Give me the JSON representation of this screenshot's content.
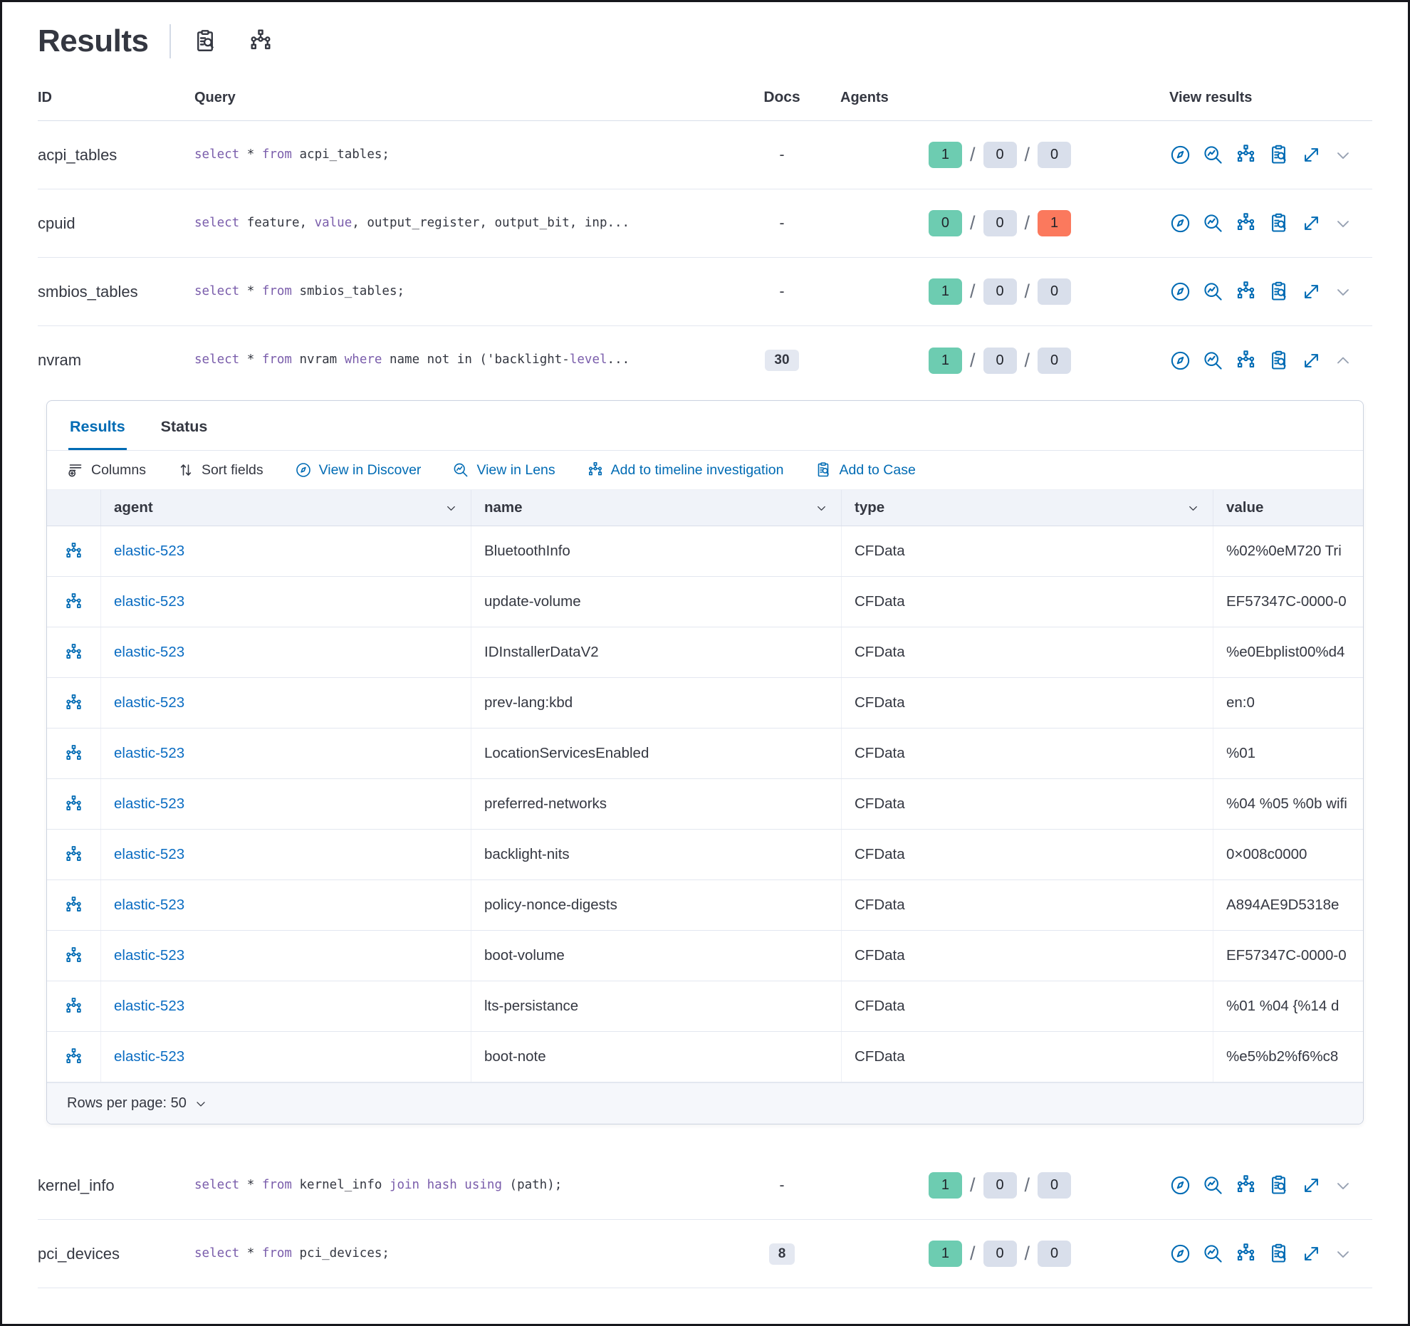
{
  "page": {
    "title": "Results"
  },
  "header_icons": [
    {
      "name": "inspect-icon"
    },
    {
      "name": "timeline-tree-icon"
    }
  ],
  "main_table": {
    "headers": {
      "id": "ID",
      "query": "Query",
      "docs": "Docs",
      "agents": "Agents",
      "view": "View results"
    },
    "rows": [
      {
        "id": "acpi_tables",
        "docs": "-",
        "docs_badge": false,
        "agents": [
          "1",
          "0",
          "0"
        ],
        "agent_colors": [
          "green",
          "gray",
          "gray"
        ],
        "expanded": false,
        "query": [
          {
            "t": "select",
            "k": 1
          },
          {
            "t": " * "
          },
          {
            "t": "from",
            "k": 1
          },
          {
            "t": " acpi_tables;"
          }
        ]
      },
      {
        "id": "cpuid",
        "docs": "-",
        "docs_badge": false,
        "agents": [
          "0",
          "0",
          "1"
        ],
        "agent_colors": [
          "green",
          "gray",
          "red"
        ],
        "expanded": false,
        "query": [
          {
            "t": "select",
            "k": 1
          },
          {
            "t": " feature, "
          },
          {
            "t": "value",
            "k": 1
          },
          {
            "t": ", output_register, output_bit, inp..."
          }
        ]
      },
      {
        "id": "smbios_tables",
        "docs": "-",
        "docs_badge": false,
        "agents": [
          "1",
          "0",
          "0"
        ],
        "agent_colors": [
          "green",
          "gray",
          "gray"
        ],
        "expanded": false,
        "query": [
          {
            "t": "select",
            "k": 1
          },
          {
            "t": " * "
          },
          {
            "t": "from",
            "k": 1
          },
          {
            "t": " smbios_tables;"
          }
        ]
      },
      {
        "id": "nvram",
        "docs": "30",
        "docs_badge": true,
        "agents": [
          "1",
          "0",
          "0"
        ],
        "agent_colors": [
          "green",
          "gray",
          "gray"
        ],
        "expanded": true,
        "query": [
          {
            "t": "select",
            "k": 1
          },
          {
            "t": " * "
          },
          {
            "t": "from",
            "k": 1
          },
          {
            "t": " nvram "
          },
          {
            "t": "where",
            "k": 1
          },
          {
            "t": " name not in ('backlight-"
          },
          {
            "t": "level",
            "k": 1
          },
          {
            "t": "..."
          }
        ]
      },
      {
        "id": "kernel_info",
        "docs": "-",
        "docs_badge": false,
        "agents": [
          "1",
          "0",
          "0"
        ],
        "agent_colors": [
          "green",
          "gray",
          "gray"
        ],
        "expanded": false,
        "query": [
          {
            "t": "select",
            "k": 1
          },
          {
            "t": " * "
          },
          {
            "t": "from",
            "k": 1
          },
          {
            "t": " kernel_info "
          },
          {
            "t": "join hash using",
            "k": 1
          },
          {
            "t": " (path);"
          }
        ]
      },
      {
        "id": "pci_devices",
        "docs": "8",
        "docs_badge": true,
        "agents": [
          "1",
          "0",
          "0"
        ],
        "agent_colors": [
          "green",
          "gray",
          "gray"
        ],
        "expanded": false,
        "query": [
          {
            "t": "select",
            "k": 1
          },
          {
            "t": " * "
          },
          {
            "t": "from",
            "k": 1
          },
          {
            "t": " pci_devices;"
          }
        ]
      }
    ],
    "view_icons": [
      "discover",
      "lens",
      "timeline",
      "inspect",
      "expand"
    ]
  },
  "panel": {
    "tabs": [
      {
        "label": "Results",
        "active": true
      },
      {
        "label": "Status",
        "active": false
      }
    ],
    "toolbar": [
      {
        "label": "Columns",
        "icon": "columns",
        "blue": false
      },
      {
        "label": "Sort fields",
        "icon": "sort",
        "blue": false
      },
      {
        "label": "View in Discover",
        "icon": "discover",
        "blue": true
      },
      {
        "label": "View in Lens",
        "icon": "lens",
        "blue": true
      },
      {
        "label": "Add to timeline investigation",
        "icon": "timeline",
        "blue": true
      },
      {
        "label": "Add to Case",
        "icon": "case",
        "blue": true
      }
    ],
    "grid": {
      "columns": [
        "agent",
        "name",
        "type",
        "value"
      ],
      "rows": [
        {
          "agent": "elastic-523",
          "name": "BluetoothInfo",
          "type": "CFData",
          "value": "%02%0eM720 Tri"
        },
        {
          "agent": "elastic-523",
          "name": "update-volume",
          "type": "CFData",
          "value": "EF57347C-0000-0"
        },
        {
          "agent": "elastic-523",
          "name": "IDInstallerDataV2",
          "type": "CFData",
          "value": "%e0Ebplist00%d4"
        },
        {
          "agent": "elastic-523",
          "name": "prev-lang:kbd",
          "type": "CFData",
          "value": "en:0"
        },
        {
          "agent": "elastic-523",
          "name": "LocationServicesEnabled",
          "type": "CFData",
          "value": "%01"
        },
        {
          "agent": "elastic-523",
          "name": "preferred-networks",
          "type": "CFData",
          "value": "%04 %05 %0b wifi"
        },
        {
          "agent": "elastic-523",
          "name": "backlight-nits",
          "type": "CFData",
          "value": "0×008c0000"
        },
        {
          "agent": "elastic-523",
          "name": "policy-nonce-digests",
          "type": "CFData",
          "value": "A894AE9D5318e"
        },
        {
          "agent": "elastic-523",
          "name": "boot-volume",
          "type": "CFData",
          "value": "EF57347C-0000-0"
        },
        {
          "agent": "elastic-523",
          "name": "lts-persistance",
          "type": "CFData",
          "value": "%01 %04 {%14 d"
        },
        {
          "agent": "elastic-523",
          "name": "boot-note",
          "type": "CFData",
          "value": "%e5%b2%f6%c8"
        }
      ]
    },
    "footer": {
      "rows_per_page_label": "Rows per page: 50"
    }
  },
  "colors": {
    "accent_blue": "#006bb4",
    "link_blue": "#0a6cc2",
    "keyword_purple": "#7a5dab",
    "badge_green": "#6dccb1",
    "badge_gray": "#d9dfeb",
    "badge_red": "#fb795d",
    "text_dark": "#343741"
  }
}
